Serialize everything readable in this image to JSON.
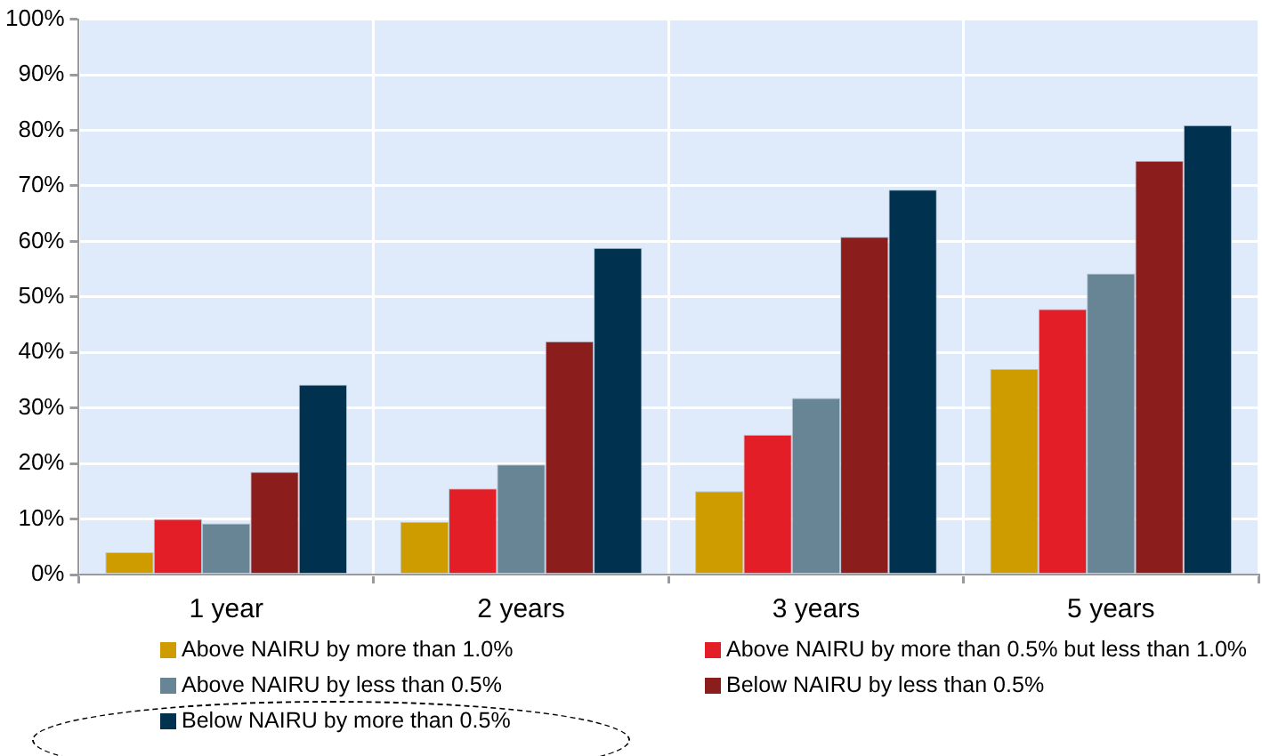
{
  "chart_data": {
    "type": "bar",
    "categories": [
      "1 year",
      "2 years",
      "3 years",
      "5 years"
    ],
    "series": [
      {
        "name": "Above NAIRU by more than 1.0%",
        "color": "#cf9c00",
        "values": [
          4,
          9.5,
          15,
          37
        ]
      },
      {
        "name": "Above NAIRU by more than 0.5% but less than 1.0%",
        "color": "#e31e26",
        "values": [
          10,
          15.5,
          25.2,
          47.8
        ]
      },
      {
        "name": "Above NAIRU by less than 0.5%",
        "color": "#688596",
        "values": [
          9.2,
          19.8,
          31.8,
          54.2
        ]
      },
      {
        "name": "Below NAIRU by less than 0.5%",
        "color": "#8b1d1c",
        "values": [
          18.5,
          42,
          60.8,
          74.5
        ]
      },
      {
        "name": "Below NAIRU by more than 0.5%",
        "color": "#00314e",
        "values": [
          34.2,
          58.8,
          69.3,
          80.9
        ]
      }
    ],
    "ylim": [
      0,
      100
    ],
    "yticks": [
      {
        "value": 0,
        "label": "0%"
      },
      {
        "value": 10,
        "label": "10%"
      },
      {
        "value": 20,
        "label": "20%"
      },
      {
        "value": 30,
        "label": "30%"
      },
      {
        "value": 40,
        "label": "40%"
      },
      {
        "value": 50,
        "label": "50%"
      },
      {
        "value": 60,
        "label": "60%"
      },
      {
        "value": 70,
        "label": "70%"
      },
      {
        "value": 80,
        "label": "80%"
      },
      {
        "value": 90,
        "label": "90%"
      },
      {
        "value": 100,
        "label": "100%"
      }
    ],
    "grid": true,
    "legend": "bottom"
  }
}
